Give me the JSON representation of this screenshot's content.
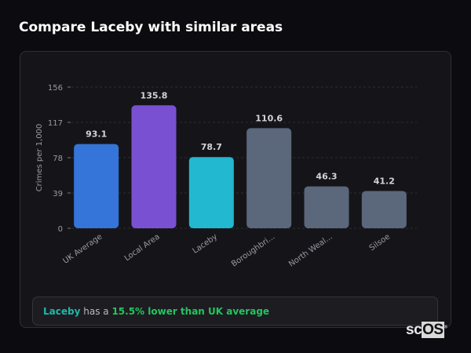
{
  "title": "Compare Laceby with similar areas",
  "chart_data": {
    "type": "bar",
    "categories": [
      "UK Average",
      "Local Area",
      "Laceby",
      "Boroughbri...",
      "North Weal...",
      "Silsoe"
    ],
    "values": [
      93.1,
      135.8,
      78.7,
      110.6,
      46.3,
      41.2
    ],
    "data_labels": [
      "93.1",
      "135.8",
      "78.7",
      "110.6",
      "46.3",
      "41.2"
    ],
    "colors": [
      "#3574d9",
      "#7a50d2",
      "#22b8cf",
      "#5b677b",
      "#5b677b",
      "#5b677b"
    ],
    "ylabel": "Crimes per 1,000",
    "xlabel": "",
    "ylim": [
      0,
      156
    ],
    "yticks": [
      0,
      39,
      78,
      117,
      156
    ],
    "grid": true
  },
  "summary": {
    "area": "Laceby",
    "connector": " has a ",
    "highlight": "15.5% lower than UK average"
  },
  "watermark": {
    "a": "sc",
    "b": "OS",
    "mark": "®"
  }
}
